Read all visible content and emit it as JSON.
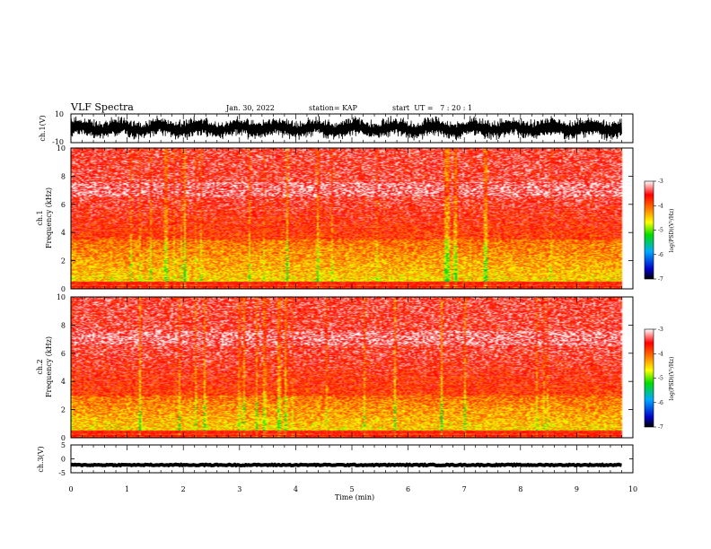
{
  "header": {
    "title": "VLF Spectra",
    "date": "Jan. 30, 2022",
    "station": "station= KAP",
    "start": "start  UT =   7 : 20 : 1"
  },
  "chart_data": [
    {
      "type": "line",
      "name": "ch1-waveform",
      "ylabel": "ch.1(V)",
      "ylim": [
        -10,
        10
      ],
      "yticks": [
        "10",
        "-10"
      ],
      "xlim": [
        0,
        10
      ],
      "note_values": "dense oscillating waveform spanning roughly -8 V to +8 V over 0–9.8 min"
    },
    {
      "type": "heatmap",
      "name": "ch1-spectrogram",
      "ylabel": "ch.1",
      "ylabel2": "Frequency  (kHz)",
      "ylim": [
        0,
        10
      ],
      "yticks": [
        "0",
        "2",
        "4",
        "6",
        "8",
        "10"
      ],
      "xlim": [
        0,
        10
      ],
      "data_end_min": 9.8,
      "colorbar": {
        "label": "log(PSD)(V²/Hz)",
        "range": [
          -7,
          -3
        ],
        "ticks": [
          "-3",
          "-4",
          "-5",
          "-6",
          "-7"
        ]
      },
      "low_band_kHz": [
        0.5,
        3.5
      ]
    },
    {
      "type": "heatmap",
      "name": "ch2-spectrogram",
      "ylabel": "ch.2",
      "ylabel2": "Frequency  (kHz)",
      "ylim": [
        0,
        10
      ],
      "yticks": [
        "0",
        "2",
        "4",
        "6",
        "8",
        "10"
      ],
      "xlim": [
        0,
        10
      ],
      "data_end_min": 9.8,
      "colorbar": {
        "label": "log(PSD)(V²/Hz)",
        "range": [
          -7,
          -3
        ],
        "ticks": [
          "-3",
          "-4",
          "-5",
          "-6",
          "-7"
        ]
      },
      "low_band_kHz": [
        0.5,
        3.0
      ]
    },
    {
      "type": "line",
      "name": "ch3-waveform",
      "ylabel": "ch.3(V)",
      "ylim": [
        -5,
        5
      ],
      "yticks": [
        "5",
        "0",
        "-5"
      ],
      "xlim": [
        0,
        10
      ],
      "level": -2.2,
      "xlabel": "Time  (min)",
      "xticks": [
        "0",
        "1",
        "2",
        "3",
        "4",
        "5",
        "6",
        "7",
        "8",
        "9",
        "10"
      ]
    }
  ]
}
